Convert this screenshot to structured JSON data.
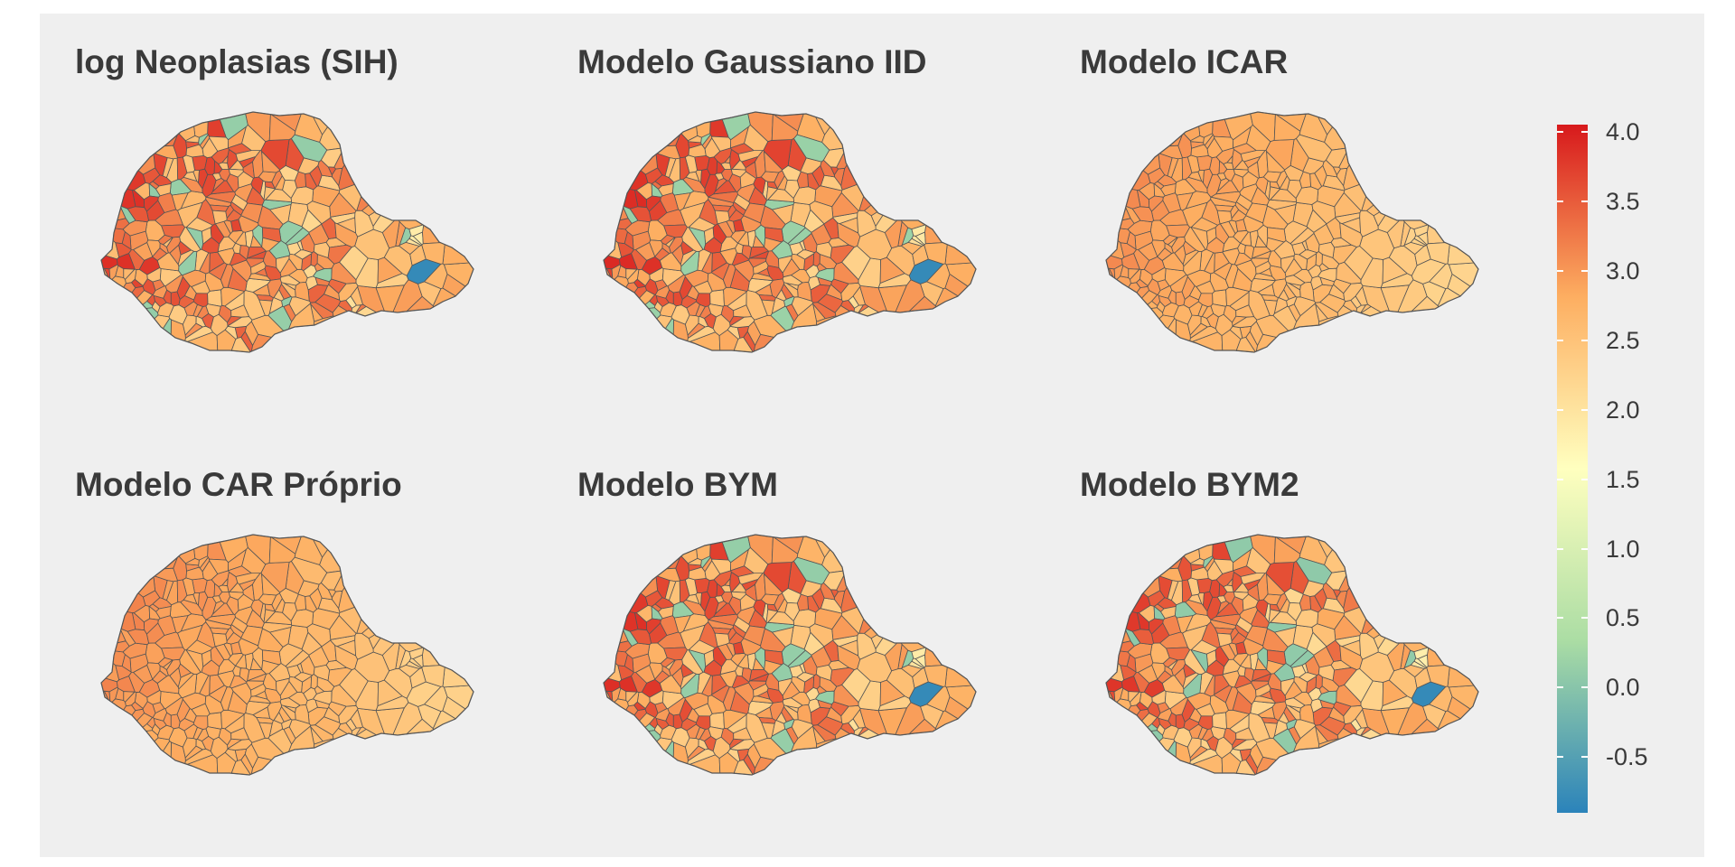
{
  "panels": [
    {
      "title": "log Neoplasias (SIH)",
      "style": "raw"
    },
    {
      "title": "Modelo Gaussiano IID",
      "style": "raw"
    },
    {
      "title": "Modelo ICAR",
      "style": "smooth"
    },
    {
      "title": "Modelo CAR Próprio",
      "style": "smooth"
    },
    {
      "title": "Modelo BYM",
      "style": "raw"
    },
    {
      "title": "Modelo BYM2",
      "style": "raw"
    }
  ],
  "legend": {
    "ticks": [
      "4.0",
      "3.5",
      "3.0",
      "2.5",
      "2.0",
      "1.5",
      "1.0",
      "0.5",
      "0.0",
      "-0.5"
    ],
    "min": -0.9,
    "max": 4.05,
    "colors": [
      "#2b83ba",
      "#abdda4",
      "#ffffbf",
      "#fdae61",
      "#d7191c"
    ]
  },
  "colors": {
    "panel_background": "#efefef",
    "border": "#555555",
    "title": "#3a3a3a"
  }
}
